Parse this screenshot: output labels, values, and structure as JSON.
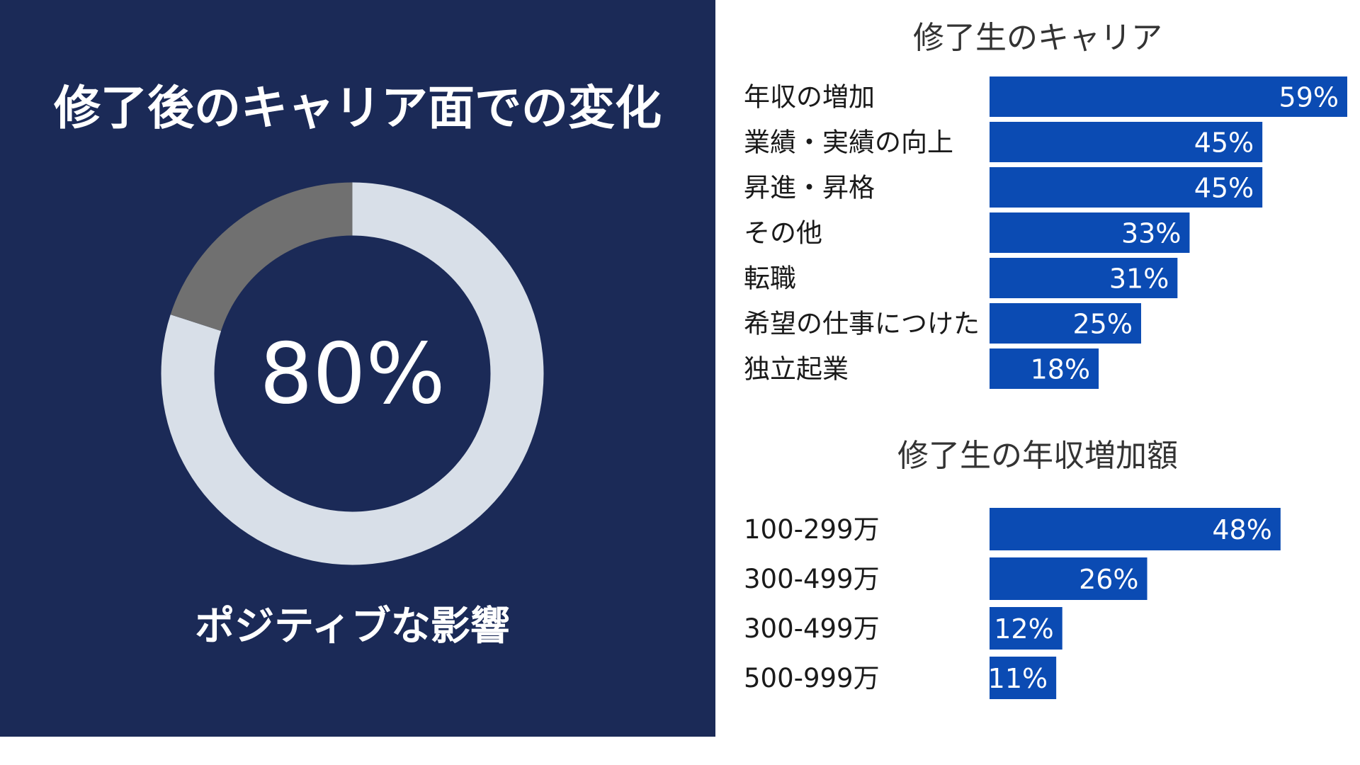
{
  "left": {
    "title": "修了後のキャリア面での変化",
    "center_value": "80%",
    "caption": "ポジティブな影響"
  },
  "colors": {
    "panel_bg": "#1b2a57",
    "donut_positive": "#d8dfe8",
    "donut_other": "#707070",
    "bar": "#0b4bb3",
    "bar_text": "#ffffff"
  },
  "chart_data": [
    {
      "type": "pie",
      "title": "修了後のキャリア面での変化",
      "slices": [
        {
          "name": "ポジティブな影響",
          "value": 80
        },
        {
          "value": 20
        }
      ]
    },
    {
      "type": "bar",
      "orientation": "horizontal",
      "title": "修了生のキャリア",
      "categories": [
        "年収の増加",
        "業績・実績の向上",
        "昇進・昇格",
        "その他",
        "転職",
        "希望の仕事につけた",
        "独立起業"
      ],
      "values": [
        59,
        45,
        45,
        33,
        31,
        25,
        18
      ],
      "labels": [
        "59%",
        "45%",
        "45%",
        "33%",
        "31%",
        "25%",
        "18%"
      ],
      "xlim": [
        0,
        59
      ]
    },
    {
      "type": "bar",
      "orientation": "horizontal",
      "title": "修了生の年収増加額",
      "categories": [
        "100-299万",
        "300-499万",
        "300-499万",
        "500-999万"
      ],
      "values": [
        48,
        26,
        12,
        11
      ],
      "labels": [
        "48%",
        "26%",
        "12%",
        "11%"
      ],
      "xlim": [
        0,
        59
      ]
    }
  ]
}
